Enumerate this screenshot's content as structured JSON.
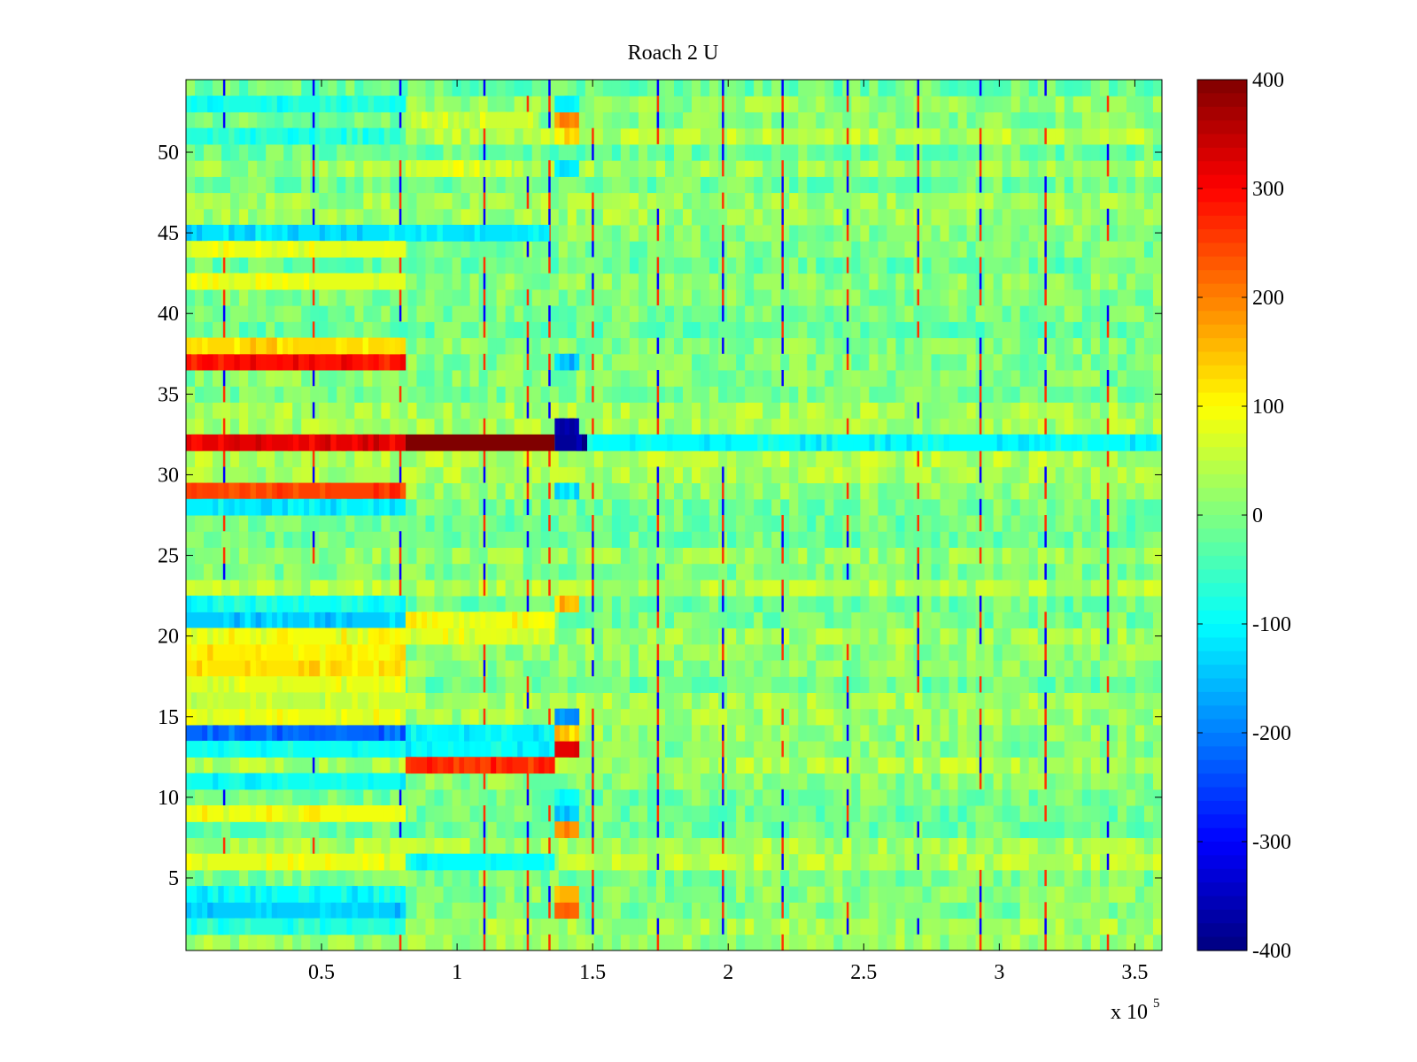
{
  "chart_data": {
    "type": "heatmap",
    "title": "Roach 2 U",
    "xlabel": "",
    "ylabel": "",
    "x_multiplier_label": "x 10",
    "x_multiplier_exponent": "5",
    "xlim": [
      0,
      3.6
    ],
    "ylim": [
      0.5,
      54.5
    ],
    "x_ticks": [
      0.5,
      1,
      1.5,
      2,
      2.5,
      3,
      3.5
    ],
    "x_tick_labels": [
      "0.5",
      "1",
      "1.5",
      "2",
      "2.5",
      "3",
      "3.5"
    ],
    "y_ticks": [
      5,
      10,
      15,
      20,
      25,
      30,
      35,
      40,
      45,
      50
    ],
    "y_tick_labels": [
      "5",
      "10",
      "15",
      "20",
      "25",
      "30",
      "35",
      "40",
      "45",
      "50"
    ],
    "rows": 54,
    "colormap": "jet",
    "colorbar": {
      "range": [
        -400,
        400
      ],
      "ticks": [
        400,
        300,
        200,
        100,
        0,
        -100,
        -200,
        -300,
        -400
      ],
      "tick_labels": [
        "400",
        "300",
        "200",
        "100",
        "0",
        "-100",
        "-200",
        "-300",
        "-400"
      ]
    },
    "background_value": 10,
    "vertical_spikes_x": [
      0.14,
      0.47,
      0.79,
      1.1,
      1.26,
      1.34,
      1.5,
      1.74,
      1.98,
      2.2,
      2.44,
      2.7,
      2.93,
      3.17,
      3.4
    ],
    "segments": [
      {
        "row": 32,
        "x0": 0.0,
        "x1": 0.81,
        "value": 320
      },
      {
        "row": 32,
        "x0": 0.81,
        "x1": 1.36,
        "value": 400
      },
      {
        "row": 32,
        "x0": 1.36,
        "x1": 1.48,
        "value": -380
      },
      {
        "row": 33,
        "x0": 1.36,
        "x1": 1.45,
        "value": -360
      },
      {
        "row": 32,
        "x0": 1.48,
        "x1": 3.6,
        "value": -100
      },
      {
        "row": 37,
        "x0": 0.0,
        "x1": 0.81,
        "value": 290
      },
      {
        "row": 38,
        "x0": 0.0,
        "x1": 0.81,
        "value": 130
      },
      {
        "row": 29,
        "x0": 0.0,
        "x1": 0.81,
        "value": 250
      },
      {
        "row": 28,
        "x0": 0.0,
        "x1": 0.81,
        "value": -110
      },
      {
        "row": 14,
        "x0": 0.0,
        "x1": 0.81,
        "value": -220
      },
      {
        "row": 13,
        "x0": 0.0,
        "x1": 0.81,
        "value": -90
      },
      {
        "row": 13,
        "x0": 0.81,
        "x1": 1.36,
        "value": -100
      },
      {
        "row": 14,
        "x0": 0.81,
        "x1": 1.36,
        "value": -110
      },
      {
        "row": 12,
        "x0": 0.81,
        "x1": 1.36,
        "value": 270
      },
      {
        "row": 13,
        "x0": 1.36,
        "x1": 1.45,
        "value": 320
      },
      {
        "row": 14,
        "x0": 1.36,
        "x1": 1.45,
        "value": 140
      },
      {
        "row": 15,
        "x0": 1.36,
        "x1": 1.45,
        "value": -190
      },
      {
        "row": 15,
        "x0": 0.0,
        "x1": 0.81,
        "value": 80
      },
      {
        "row": 21,
        "x0": 0.0,
        "x1": 0.81,
        "value": -140
      },
      {
        "row": 22,
        "x0": 0.0,
        "x1": 0.81,
        "value": -90
      },
      {
        "row": 18,
        "x0": 0.0,
        "x1": 0.81,
        "value": 120
      },
      {
        "row": 19,
        "x0": 0.0,
        "x1": 0.81,
        "value": 110
      },
      {
        "row": 20,
        "x0": 0.0,
        "x1": 0.81,
        "value": 90
      },
      {
        "row": 17,
        "x0": 0.0,
        "x1": 0.81,
        "value": 80
      },
      {
        "row": 16,
        "x0": 0.0,
        "x1": 0.81,
        "value": 50
      },
      {
        "row": 20,
        "x0": 0.81,
        "x1": 1.36,
        "value": 80
      },
      {
        "row": 21,
        "x0": 0.81,
        "x1": 1.36,
        "value": 90
      },
      {
        "row": 3,
        "x0": 0.0,
        "x1": 0.81,
        "value": -140
      },
      {
        "row": 4,
        "x0": 0.0,
        "x1": 0.81,
        "value": -100
      },
      {
        "row": 2,
        "x0": 0.0,
        "x1": 0.81,
        "value": -70
      },
      {
        "row": 6,
        "x0": 0.0,
        "x1": 0.81,
        "value": 80
      },
      {
        "row": 9,
        "x0": 0.0,
        "x1": 0.81,
        "value": 90
      },
      {
        "row": 11,
        "x0": 0.0,
        "x1": 0.81,
        "value": -90
      },
      {
        "row": 45,
        "x0": 0.0,
        "x1": 1.34,
        "value": -120
      },
      {
        "row": 44,
        "x0": 0.0,
        "x1": 0.81,
        "value": 80
      },
      {
        "row": 42,
        "x0": 0.0,
        "x1": 0.81,
        "value": 80
      },
      {
        "row": 51,
        "x0": 0.0,
        "x1": 0.81,
        "value": -70
      },
      {
        "row": 53,
        "x0": 0.0,
        "x1": 0.81,
        "value": -80
      },
      {
        "row": 52,
        "x0": 0.81,
        "x1": 1.3,
        "value": 60
      },
      {
        "row": 49,
        "x0": 0.81,
        "x1": 1.2,
        "value": 70
      },
      {
        "row": 52,
        "x0": 1.36,
        "x1": 1.45,
        "value": 200
      },
      {
        "row": 51,
        "x0": 1.36,
        "x1": 1.45,
        "value": 120
      },
      {
        "row": 53,
        "x0": 1.36,
        "x1": 1.45,
        "value": -110
      },
      {
        "row": 49,
        "x0": 1.36,
        "x1": 1.45,
        "value": -110
      },
      {
        "row": 37,
        "x0": 1.36,
        "x1": 1.45,
        "value": -150
      },
      {
        "row": 29,
        "x0": 1.36,
        "x1": 1.45,
        "value": -110
      },
      {
        "row": 22,
        "x0": 1.36,
        "x1": 1.45,
        "value": 150
      },
      {
        "row": 9,
        "x0": 1.36,
        "x1": 1.45,
        "value": -130
      },
      {
        "row": 10,
        "x0": 1.36,
        "x1": 1.45,
        "value": -100
      },
      {
        "row": 8,
        "x0": 1.36,
        "x1": 1.45,
        "value": 180
      },
      {
        "row": 3,
        "x0": 1.36,
        "x1": 1.45,
        "value": 220
      },
      {
        "row": 4,
        "x0": 1.36,
        "x1": 1.45,
        "value": 160
      },
      {
        "row": 6,
        "x0": 0.81,
        "x1": 1.36,
        "value": -100
      }
    ]
  }
}
